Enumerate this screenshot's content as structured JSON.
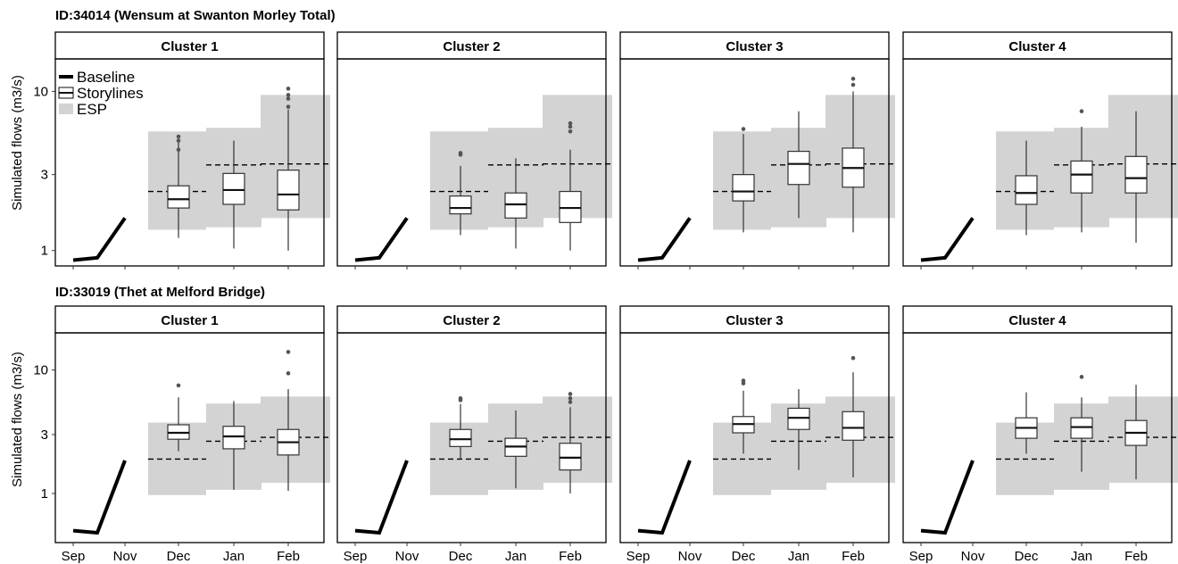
{
  "figure": {
    "rows": [
      {
        "title": "ID:34014 (Wensum at Swanton Morley Total)"
      },
      {
        "title": "ID:33019 (Thet at Melford Bridge)"
      }
    ],
    "legend": {
      "position": "top-left",
      "items": [
        {
          "label": "Baseline",
          "kind": "line"
        },
        {
          "label": "Storylines",
          "kind": "box"
        },
        {
          "label": "ESP",
          "kind": "fill"
        }
      ]
    },
    "colors": {
      "baseline": "#000000",
      "esp": "#d3d3d3",
      "box_fill": "#ffffff",
      "box_stroke": "#333333",
      "outlier": "#555555"
    }
  },
  "chart_data": [
    {
      "type": "box",
      "station": "ID:34014 (Wensum at Swanton Morley Total)",
      "panel": "Cluster 1",
      "ylabel": "Simulated flows (m3/s)",
      "y_scale": "log",
      "ylim": [
        0.8,
        16
      ],
      "yticks": [
        1,
        3,
        10
      ],
      "x_categories": [
        "Sep",
        "Oct",
        "Nov",
        "Dec",
        "Jan",
        "Feb"
      ],
      "x_tick_labels": [
        "Sep",
        "Nov",
        "Dec",
        "Jan",
        "Feb"
      ],
      "baseline": {
        "x": [
          "Sep",
          "Oct",
          "Nov"
        ],
        "y": [
          0.87,
          0.9,
          1.6
        ]
      },
      "esp": {
        "x": [
          "Dec",
          "Jan",
          "Feb"
        ],
        "low": [
          1.35,
          1.4,
          1.6
        ],
        "high": [
          5.6,
          5.9,
          9.5
        ],
        "median": [
          2.35,
          3.45,
          3.5
        ]
      },
      "storylines": [
        {
          "month": "Dec",
          "whislo": 1.2,
          "q1": 1.85,
          "med": 2.1,
          "q3": 2.55,
          "whishi": 5.1,
          "fliers": [
            4.3,
            4.9,
            5.2
          ]
        },
        {
          "month": "Jan",
          "whislo": 1.03,
          "q1": 1.95,
          "med": 2.4,
          "q3": 3.05,
          "whishi": 4.9,
          "fliers": []
        },
        {
          "month": "Feb",
          "whislo": 1.0,
          "q1": 1.8,
          "med": 2.25,
          "q3": 3.2,
          "whishi": 7.7,
          "fliers": [
            8.0,
            9.0,
            9.5,
            10.4
          ]
        }
      ]
    },
    {
      "type": "box",
      "station": "ID:34014 (Wensum at Swanton Morley Total)",
      "panel": "Cluster 2",
      "ylabel": "Simulated flows (m3/s)",
      "y_scale": "log",
      "ylim": [
        0.8,
        16
      ],
      "yticks": [
        1,
        3,
        10
      ],
      "x_categories": [
        "Sep",
        "Oct",
        "Nov",
        "Dec",
        "Jan",
        "Feb"
      ],
      "x_tick_labels": [
        "Sep",
        "Nov",
        "Dec",
        "Jan",
        "Feb"
      ],
      "baseline": {
        "x": [
          "Sep",
          "Oct",
          "Nov"
        ],
        "y": [
          0.87,
          0.9,
          1.6
        ]
      },
      "esp": {
        "x": [
          "Dec",
          "Jan",
          "Feb"
        ],
        "low": [
          1.35,
          1.4,
          1.6
        ],
        "high": [
          5.6,
          5.9,
          9.5
        ],
        "median": [
          2.35,
          3.45,
          3.5
        ]
      },
      "storylines": [
        {
          "month": "Dec",
          "whislo": 1.25,
          "q1": 1.7,
          "med": 1.85,
          "q3": 2.2,
          "whishi": 3.4,
          "fliers": [
            4.0,
            4.1
          ]
        },
        {
          "month": "Jan",
          "whislo": 1.03,
          "q1": 1.6,
          "med": 1.95,
          "q3": 2.3,
          "whishi": 3.8,
          "fliers": []
        },
        {
          "month": "Feb",
          "whislo": 1.0,
          "q1": 1.5,
          "med": 1.85,
          "q3": 2.35,
          "whishi": 4.3,
          "fliers": [
            5.6,
            6.0,
            6.3
          ]
        }
      ]
    },
    {
      "type": "box",
      "station": "ID:34014 (Wensum at Swanton Morley Total)",
      "panel": "Cluster 3",
      "ylabel": "Simulated flows (m3/s)",
      "y_scale": "log",
      "ylim": [
        0.8,
        16
      ],
      "yticks": [
        1,
        3,
        10
      ],
      "x_categories": [
        "Sep",
        "Oct",
        "Nov",
        "Dec",
        "Jan",
        "Feb"
      ],
      "x_tick_labels": [
        "Sep",
        "Nov",
        "Dec",
        "Jan",
        "Feb"
      ],
      "baseline": {
        "x": [
          "Sep",
          "Oct",
          "Nov"
        ],
        "y": [
          0.87,
          0.9,
          1.6
        ]
      },
      "esp": {
        "x": [
          "Dec",
          "Jan",
          "Feb"
        ],
        "low": [
          1.35,
          1.4,
          1.6
        ],
        "high": [
          5.6,
          5.9,
          9.5
        ],
        "median": [
          2.35,
          3.45,
          3.5
        ]
      },
      "storylines": [
        {
          "month": "Dec",
          "whislo": 1.3,
          "q1": 2.05,
          "med": 2.35,
          "q3": 3.0,
          "whishi": 5.4,
          "fliers": [
            5.8
          ]
        },
        {
          "month": "Jan",
          "whislo": 1.6,
          "q1": 2.6,
          "med": 3.5,
          "q3": 4.2,
          "whishi": 7.5,
          "fliers": []
        },
        {
          "month": "Feb",
          "whislo": 1.3,
          "q1": 2.5,
          "med": 3.3,
          "q3": 4.4,
          "whishi": 10.0,
          "fliers": [
            11.0,
            12.0
          ]
        }
      ]
    },
    {
      "type": "box",
      "station": "ID:34014 (Wensum at Swanton Morley Total)",
      "panel": "Cluster 4",
      "ylabel": "Simulated flows (m3/s)",
      "y_scale": "log",
      "ylim": [
        0.8,
        16
      ],
      "yticks": [
        1,
        3,
        10
      ],
      "x_categories": [
        "Sep",
        "Oct",
        "Nov",
        "Dec",
        "Jan",
        "Feb"
      ],
      "x_tick_labels": [
        "Sep",
        "Nov",
        "Dec",
        "Jan",
        "Feb"
      ],
      "baseline": {
        "x": [
          "Sep",
          "Oct",
          "Nov"
        ],
        "y": [
          0.87,
          0.9,
          1.6
        ]
      },
      "esp": {
        "x": [
          "Dec",
          "Jan",
          "Feb"
        ],
        "low": [
          1.35,
          1.4,
          1.6
        ],
        "high": [
          5.6,
          5.9,
          9.5
        ],
        "median": [
          2.35,
          3.45,
          3.5
        ]
      },
      "storylines": [
        {
          "month": "Dec",
          "whislo": 1.25,
          "q1": 1.95,
          "med": 2.3,
          "q3": 2.95,
          "whishi": 4.9,
          "fliers": []
        },
        {
          "month": "Jan",
          "whislo": 1.3,
          "q1": 2.3,
          "med": 3.0,
          "q3": 3.65,
          "whishi": 6.0,
          "fliers": [
            7.5
          ]
        },
        {
          "month": "Feb",
          "whislo": 1.12,
          "q1": 2.3,
          "med": 2.85,
          "q3": 3.9,
          "whishi": 7.5,
          "fliers": []
        }
      ]
    },
    {
      "type": "box",
      "station": "ID:33019 (Thet at Melford Bridge)",
      "panel": "Cluster 1",
      "ylabel": "Simulated flows (m3/s)",
      "y_scale": "log",
      "ylim": [
        0.4,
        20
      ],
      "yticks": [
        1,
        3,
        10
      ],
      "x_categories": [
        "Sep",
        "Oct",
        "Nov",
        "Dec",
        "Jan",
        "Feb"
      ],
      "x_tick_labels": [
        "Sep",
        "Nov",
        "Dec",
        "Jan",
        "Feb"
      ],
      "baseline": {
        "x": [
          "Sep",
          "Oct",
          "Nov"
        ],
        "y": [
          0.5,
          0.48,
          1.85
        ]
      },
      "esp": {
        "x": [
          "Dec",
          "Jan",
          "Feb"
        ],
        "low": [
          0.97,
          1.07,
          1.22
        ],
        "high": [
          3.75,
          5.35,
          6.1
        ],
        "median": [
          1.9,
          2.65,
          2.85
        ]
      },
      "storylines": [
        {
          "month": "Dec",
          "whislo": 2.2,
          "q1": 2.75,
          "med": 3.1,
          "q3": 3.6,
          "whishi": 6.0,
          "fliers": [
            7.5
          ]
        },
        {
          "month": "Jan",
          "whislo": 1.07,
          "q1": 2.3,
          "med": 2.9,
          "q3": 3.5,
          "whishi": 5.6,
          "fliers": []
        },
        {
          "month": "Feb",
          "whislo": 1.05,
          "q1": 2.05,
          "med": 2.6,
          "q3": 3.3,
          "whishi": 7.0,
          "fliers": [
            9.4,
            14.0
          ]
        }
      ]
    },
    {
      "type": "box",
      "station": "ID:33019 (Thet at Melford Bridge)",
      "panel": "Cluster 2",
      "ylabel": "Simulated flows (m3/s)",
      "y_scale": "log",
      "ylim": [
        0.4,
        20
      ],
      "yticks": [
        1,
        3,
        10
      ],
      "x_categories": [
        "Sep",
        "Oct",
        "Nov",
        "Dec",
        "Jan",
        "Feb"
      ],
      "x_tick_labels": [
        "Sep",
        "Nov",
        "Dec",
        "Jan",
        "Feb"
      ],
      "baseline": {
        "x": [
          "Sep",
          "Oct",
          "Nov"
        ],
        "y": [
          0.5,
          0.48,
          1.85
        ]
      },
      "esp": {
        "x": [
          "Dec",
          "Jan",
          "Feb"
        ],
        "low": [
          0.97,
          1.07,
          1.22
        ],
        "high": [
          3.75,
          5.35,
          6.1
        ],
        "median": [
          1.9,
          2.65,
          2.85
        ]
      },
      "storylines": [
        {
          "month": "Dec",
          "whislo": 1.9,
          "q1": 2.4,
          "med": 2.75,
          "q3": 3.3,
          "whishi": 5.3,
          "fliers": [
            5.7,
            5.9
          ]
        },
        {
          "month": "Jan",
          "whislo": 1.1,
          "q1": 2.0,
          "med": 2.4,
          "q3": 2.8,
          "whishi": 4.7,
          "fliers": []
        },
        {
          "month": "Feb",
          "whislo": 1.0,
          "q1": 1.55,
          "med": 1.95,
          "q3": 2.55,
          "whishi": 5.0,
          "fliers": [
            5.5,
            5.9,
            6.4
          ]
        }
      ]
    },
    {
      "type": "box",
      "station": "ID:33019 (Thet at Melford Bridge)",
      "panel": "Cluster 3",
      "ylabel": "Simulated flows (m3/s)",
      "y_scale": "log",
      "ylim": [
        0.4,
        20
      ],
      "yticks": [
        1,
        3,
        10
      ],
      "x_categories": [
        "Sep",
        "Oct",
        "Nov",
        "Dec",
        "Jan",
        "Feb"
      ],
      "x_tick_labels": [
        "Sep",
        "Nov",
        "Dec",
        "Jan",
        "Feb"
      ],
      "baseline": {
        "x": [
          "Sep",
          "Oct",
          "Nov"
        ],
        "y": [
          0.5,
          0.48,
          1.85
        ]
      },
      "esp": {
        "x": [
          "Dec",
          "Jan",
          "Feb"
        ],
        "low": [
          0.97,
          1.07,
          1.22
        ],
        "high": [
          3.75,
          5.35,
          6.1
        ],
        "median": [
          1.9,
          2.65,
          2.85
        ]
      },
      "storylines": [
        {
          "month": "Dec",
          "whislo": 2.1,
          "q1": 3.1,
          "med": 3.65,
          "q3": 4.2,
          "whishi": 6.8,
          "fliers": [
            7.8,
            8.2
          ]
        },
        {
          "month": "Jan",
          "whislo": 1.55,
          "q1": 3.3,
          "med": 4.1,
          "q3": 4.9,
          "whishi": 7.0,
          "fliers": []
        },
        {
          "month": "Feb",
          "whislo": 1.35,
          "q1": 2.7,
          "med": 3.4,
          "q3": 4.6,
          "whishi": 9.6,
          "fliers": [
            12.5
          ]
        }
      ]
    },
    {
      "type": "box",
      "station": "ID:33019 (Thet at Melford Bridge)",
      "panel": "Cluster 4",
      "ylabel": "Simulated flows (m3/s)",
      "y_scale": "log",
      "ylim": [
        0.4,
        20
      ],
      "yticks": [
        1,
        3,
        10
      ],
      "x_categories": [
        "Sep",
        "Oct",
        "Nov",
        "Dec",
        "Jan",
        "Feb"
      ],
      "x_tick_labels": [
        "Sep",
        "Nov",
        "Dec",
        "Jan",
        "Feb"
      ],
      "baseline": {
        "x": [
          "Sep",
          "Oct",
          "Nov"
        ],
        "y": [
          0.5,
          0.48,
          1.85
        ]
      },
      "esp": {
        "x": [
          "Dec",
          "Jan",
          "Feb"
        ],
        "low": [
          0.97,
          1.07,
          1.22
        ],
        "high": [
          3.75,
          5.35,
          6.1
        ],
        "median": [
          1.9,
          2.65,
          2.85
        ]
      },
      "storylines": [
        {
          "month": "Dec",
          "whislo": 2.1,
          "q1": 2.8,
          "med": 3.4,
          "q3": 4.1,
          "whishi": 6.6,
          "fliers": []
        },
        {
          "month": "Jan",
          "whislo": 1.5,
          "q1": 2.8,
          "med": 3.45,
          "q3": 4.1,
          "whishi": 6.0,
          "fliers": [
            8.8
          ]
        },
        {
          "month": "Feb",
          "whislo": 1.3,
          "q1": 2.45,
          "med": 3.1,
          "q3": 3.9,
          "whishi": 7.6,
          "fliers": []
        }
      ]
    }
  ]
}
